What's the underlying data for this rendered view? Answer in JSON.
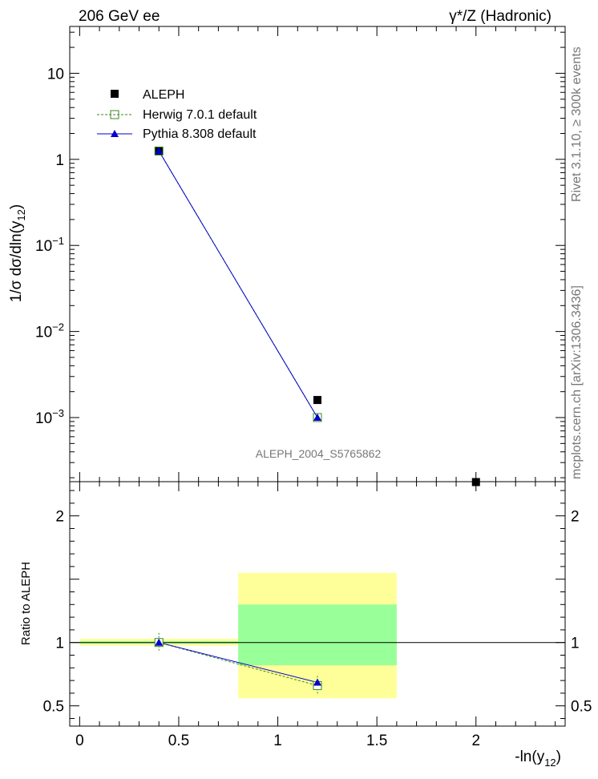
{
  "header": {
    "left": "206 GeV ee",
    "right": "γ*/Z (Hadronic)"
  },
  "side_text": {
    "rivet": "Rivet 3.1.10, ≥ 300k events",
    "mcplots": "mcplots.cern.ch [arXiv:1306.3436]"
  },
  "watermark": "ALEPH_2004_S5765862",
  "legend": [
    {
      "label": "ALEPH",
      "marker": "square",
      "color": "#000000"
    },
    {
      "label": "Herwig 7.0.1 default",
      "marker": "open-square",
      "color": "#3a8a1e"
    },
    {
      "label": "Pythia 8.308 default",
      "marker": "triangle",
      "color": "#0000cc"
    }
  ],
  "colors": {
    "aleph": "#000000",
    "herwig": "#3a8a1e",
    "pythia": "#0000cc",
    "band_inner": "#99ff99",
    "band_outer": "#ffff99"
  },
  "chart_data": [
    {
      "type": "scatter",
      "panel": "main",
      "title": "",
      "ylabel": "1/σ dσ/dln(y",
      "ylabel_sub": "12",
      "ylabel_close": ")",
      "xlabel": "",
      "xlim": [
        -0.05,
        2.45
      ],
      "ylim": [
        0.00018,
        35
      ],
      "yscale": "log",
      "yticks": [
        {
          "value": 0.001,
          "mant": "10",
          "exp": "−3"
        },
        {
          "value": 0.01,
          "mant": "10",
          "exp": "−2"
        },
        {
          "value": 0.1,
          "mant": "10",
          "exp": "−1"
        },
        {
          "value": 1,
          "mant": "1",
          "exp": ""
        },
        {
          "value": 10,
          "mant": "10",
          "exp": ""
        }
      ],
      "series": [
        {
          "name": "ALEPH",
          "x": [
            0.4,
            1.2,
            2.0
          ],
          "y": [
            1.25,
            0.0016,
            0.000155
          ]
        },
        {
          "name": "Herwig 7.0.1 default",
          "x": [
            0.4,
            1.2
          ],
          "y": [
            1.25,
            0.001
          ]
        },
        {
          "name": "Pythia 8.308 default",
          "x": [
            0.4,
            1.2
          ],
          "y": [
            1.25,
            0.001
          ]
        }
      ]
    },
    {
      "type": "scatter",
      "panel": "ratio",
      "ylabel": "Ratio to ALEPH",
      "xlabel": "-ln(y",
      "xlabel_sub": "12",
      "xlabel_close": ")",
      "xlim": [
        -0.05,
        2.45
      ],
      "ylim": [
        0.34,
        2.27
      ],
      "xticks": [
        {
          "value": 0,
          "label": "0"
        },
        {
          "value": 0.5,
          "label": "0.5"
        },
        {
          "value": 1,
          "label": "1"
        },
        {
          "value": 1.5,
          "label": "1.5"
        },
        {
          "value": 2,
          "label": "2"
        }
      ],
      "yticks": [
        {
          "value": 0.5,
          "label": "0.5"
        },
        {
          "value": 1,
          "label": "1"
        },
        {
          "value": 1.5,
          "label": ""
        },
        {
          "value": 2,
          "label": "2"
        }
      ],
      "bands": [
        {
          "x": [
            0.0,
            0.8
          ],
          "inner": [
            0.99,
            1.01
          ],
          "outer": [
            0.975,
            1.03
          ]
        },
        {
          "x": [
            0.8,
            1.6
          ],
          "inner": [
            0.82,
            1.3
          ],
          "outer": [
            0.56,
            1.55
          ]
        }
      ],
      "series": [
        {
          "name": "Herwig 7.0.1 default",
          "x": [
            0.4,
            1.2
          ],
          "y": [
            1.0,
            0.66
          ]
        },
        {
          "name": "Pythia 8.308 default",
          "x": [
            0.4,
            1.2
          ],
          "y": [
            1.0,
            0.685
          ]
        }
      ]
    }
  ]
}
